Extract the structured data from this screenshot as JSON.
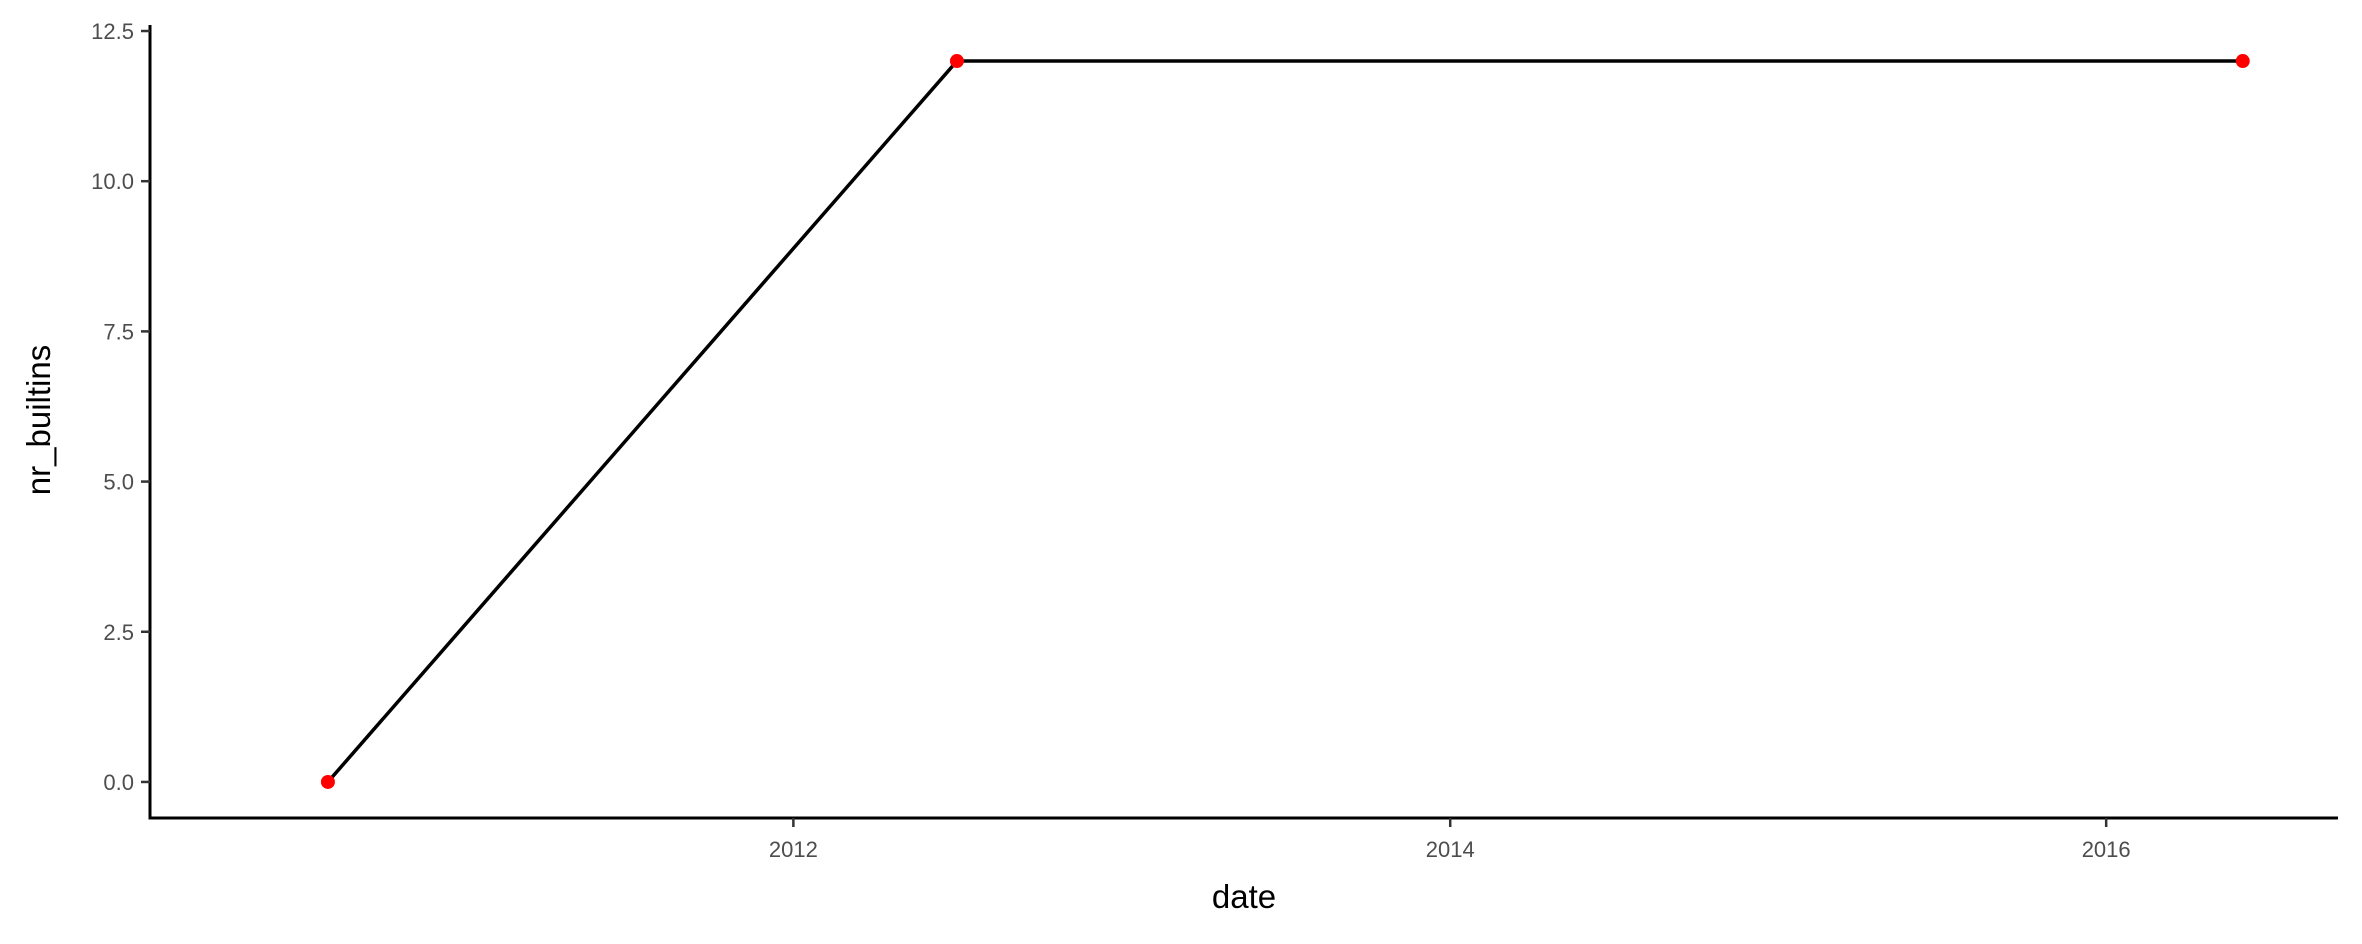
{
  "chart_data": {
    "type": "line",
    "title": "",
    "xlabel": "date",
    "ylabel": "nr_builtins",
    "x_scale": "date",
    "xlim": [
      "2010-01-15",
      "2016-09-15"
    ],
    "ylim": [
      -0.6,
      12.6
    ],
    "x_ticks": [
      "2012-01-01",
      "2014-01-01",
      "2016-01-01"
    ],
    "x_tick_labels": [
      "2012",
      "2014",
      "2016"
    ],
    "y_ticks": [
      0,
      2.5,
      5,
      7.5,
      10,
      12.5
    ],
    "y_tick_labels": [
      "0.0",
      "2.5",
      "5.0",
      "7.5",
      "10.0",
      "12.5"
    ],
    "grid": false,
    "legend": "none",
    "series": [
      {
        "x": [
          "2010-08-01",
          "2012-07-01",
          "2016-06-01"
        ],
        "y": [
          0,
          12,
          12
        ],
        "line_color": "#000000",
        "point_color": "#ff0000"
      }
    ]
  }
}
